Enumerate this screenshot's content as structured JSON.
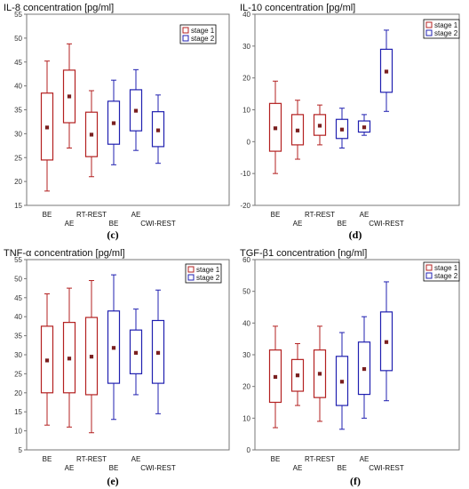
{
  "colors": {
    "stage1": "#b32020",
    "stage2": "#2020b0",
    "axis": "#777777",
    "median": "#7a1f1f"
  },
  "legend": [
    "stage 1",
    "stage 2"
  ],
  "chart_data": [
    {
      "type": "box",
      "title": "IL-8 concentration [pg/ml]",
      "panel_label": "(c)",
      "ylim": [
        15,
        55
      ],
      "yticks": [
        15,
        20,
        25,
        30,
        35,
        40,
        45,
        50,
        55
      ],
      "legend_placement": "top-right",
      "category_labels": [
        {
          "text": "BE",
          "row": 0
        },
        {
          "text": "AE",
          "row": 1
        },
        {
          "text": "RT-REST",
          "row": 0
        },
        {
          "text": "BE",
          "row": 1
        },
        {
          "text": "AE",
          "row": 0
        },
        {
          "text": "CWI-REST",
          "row": 1
        }
      ],
      "boxes": [
        {
          "stage": 1,
          "min": 18,
          "q1": 24.5,
          "median": 31.3,
          "q3": 38.5,
          "max": 45.2
        },
        {
          "stage": 1,
          "min": 27,
          "q1": 32.3,
          "median": 37.8,
          "q3": 43.3,
          "max": 48.8
        },
        {
          "stage": 1,
          "min": 21,
          "q1": 25.2,
          "median": 29.8,
          "q3": 34.5,
          "max": 39
        },
        {
          "stage": 2,
          "min": 23.5,
          "q1": 27.8,
          "median": 32.2,
          "q3": 36.8,
          "max": 41.2
        },
        {
          "stage": 2,
          "min": 26.5,
          "q1": 30.6,
          "median": 34.8,
          "q3": 39.2,
          "max": 43.4
        },
        {
          "stage": 2,
          "min": 23.8,
          "q1": 27.3,
          "median": 30.7,
          "q3": 34.6,
          "max": 38.1
        }
      ]
    },
    {
      "type": "box",
      "title": "IL-10 concentration [pg/ml]",
      "panel_label": "(d)",
      "ylim": [
        -20,
        40
      ],
      "yticks": [
        -20,
        -10,
        0,
        10,
        20,
        30,
        40
      ],
      "legend_placement": "top-right",
      "category_labels": [
        {
          "text": "BE",
          "row": 0
        },
        {
          "text": "AE",
          "row": 1
        },
        {
          "text": "RT-REST",
          "row": 0
        },
        {
          "text": "BE",
          "row": 1
        },
        {
          "text": "AE",
          "row": 0
        },
        {
          "text": "CWI-REST",
          "row": 1
        }
      ],
      "boxes": [
        {
          "stage": 1,
          "min": -10,
          "q1": -3,
          "median": 4.2,
          "q3": 12,
          "max": 19
        },
        {
          "stage": 1,
          "min": -5.5,
          "q1": -1,
          "median": 3.5,
          "q3": 8.5,
          "max": 13
        },
        {
          "stage": 1,
          "min": -1,
          "q1": 2,
          "median": 5,
          "q3": 8.5,
          "max": 11.5
        },
        {
          "stage": 2,
          "min": -2,
          "q1": 1,
          "median": 3.8,
          "q3": 7,
          "max": 10.5
        },
        {
          "stage": 2,
          "min": 2,
          "q1": 3,
          "median": 4.5,
          "q3": 6.5,
          "max": 8.5
        },
        {
          "stage": 2,
          "min": 9.5,
          "q1": 15.5,
          "median": 22,
          "q3": 29,
          "max": 35
        }
      ]
    },
    {
      "type": "box",
      "title": "TNF-α concentration [pg/ml]",
      "panel_label": "(e)",
      "ylim": [
        5,
        55
      ],
      "yticks": [
        5,
        10,
        15,
        20,
        25,
        30,
        35,
        40,
        45,
        50,
        55
      ],
      "legend_placement": "top-right",
      "category_labels": [
        {
          "text": "BE",
          "row": 0
        },
        {
          "text": "AE",
          "row": 1
        },
        {
          "text": "RT-REST",
          "row": 0
        },
        {
          "text": "BE",
          "row": 1
        },
        {
          "text": "AE",
          "row": 0
        },
        {
          "text": "CWI-REST",
          "row": 1
        }
      ],
      "boxes": [
        {
          "stage": 1,
          "min": 11.5,
          "q1": 20,
          "median": 28.5,
          "q3": 37.5,
          "max": 46
        },
        {
          "stage": 1,
          "min": 11,
          "q1": 20,
          "median": 29,
          "q3": 38.5,
          "max": 47.5
        },
        {
          "stage": 1,
          "min": 9.5,
          "q1": 19.5,
          "median": 29.5,
          "q3": 39.8,
          "max": 49.5
        },
        {
          "stage": 2,
          "min": 13,
          "q1": 22.5,
          "median": 31.8,
          "q3": 41.5,
          "max": 51
        },
        {
          "stage": 2,
          "min": 19.5,
          "q1": 25,
          "median": 30.5,
          "q3": 36.5,
          "max": 42
        },
        {
          "stage": 2,
          "min": 14.5,
          "q1": 22.5,
          "median": 30.5,
          "q3": 39,
          "max": 47
        }
      ]
    },
    {
      "type": "box",
      "title": "TGF-β1 concentration [ng/ml]",
      "panel_label": "(f)",
      "ylim": [
        0,
        60
      ],
      "yticks": [
        0,
        10,
        20,
        30,
        40,
        50,
        60
      ],
      "legend_placement": "top-right",
      "category_labels": [
        {
          "text": "BE",
          "row": 0
        },
        {
          "text": "AE",
          "row": 1
        },
        {
          "text": "RT-REST",
          "row": 0
        },
        {
          "text": "BE",
          "row": 1
        },
        {
          "text": "AE",
          "row": 0
        },
        {
          "text": "CWI-REST",
          "row": 1
        }
      ],
      "boxes": [
        {
          "stage": 1,
          "min": 7,
          "q1": 15,
          "median": 23,
          "q3": 31.5,
          "max": 39
        },
        {
          "stage": 1,
          "min": 14,
          "q1": 18.5,
          "median": 23.5,
          "q3": 28.5,
          "max": 33.5
        },
        {
          "stage": 1,
          "min": 9,
          "q1": 16.5,
          "median": 24,
          "q3": 31.5,
          "max": 39
        },
        {
          "stage": 2,
          "min": 6.5,
          "q1": 14,
          "median": 21.5,
          "q3": 29.5,
          "max": 37
        },
        {
          "stage": 2,
          "min": 10,
          "q1": 17.5,
          "median": 25.5,
          "q3": 34,
          "max": 42
        },
        {
          "stage": 2,
          "min": 15.5,
          "q1": 25,
          "median": 34,
          "q3": 43.5,
          "max": 53
        }
      ]
    }
  ]
}
